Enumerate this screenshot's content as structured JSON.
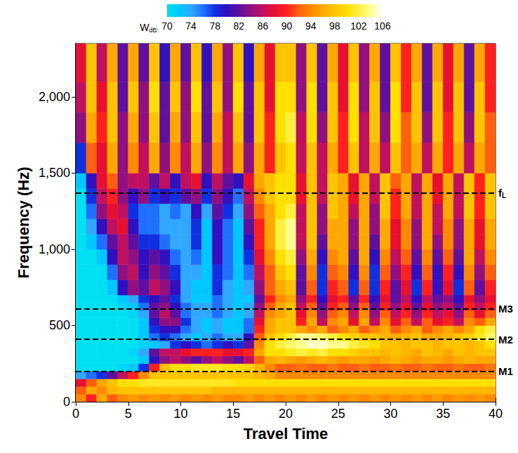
{
  "chart_data": {
    "type": "heatmap",
    "x_label": "Travel Time",
    "y_label": "Frequency (Hz)",
    "xlim": [
      0,
      40
    ],
    "xticks": [
      0,
      5,
      10,
      15,
      20,
      25,
      30,
      35,
      40
    ],
    "ylim": [
      0,
      2350
    ],
    "yticks": [
      0,
      500,
      1000,
      1500,
      2000
    ],
    "x_bins": [
      0,
      1,
      2,
      3,
      4,
      5,
      6,
      7,
      8,
      9,
      10,
      11,
      12,
      13,
      14,
      15,
      16,
      17,
      18,
      19,
      20,
      21,
      22,
      23,
      24,
      25,
      26,
      27,
      28,
      29,
      30,
      31,
      32,
      33,
      34,
      35,
      36,
      37,
      38,
      39,
      40
    ],
    "y_bins": [
      0,
      50,
      100,
      150,
      200,
      250,
      300,
      350,
      400,
      450,
      500,
      550,
      600,
      650,
      700,
      800,
      900,
      1000,
      1100,
      1200,
      1300,
      1400,
      1500,
      1700,
      1900,
      2100,
      2400
    ],
    "values": [
      [
        94,
        90,
        96,
        92,
        94,
        95,
        94,
        95,
        94,
        95,
        94,
        95,
        94,
        95,
        94,
        94,
        95,
        94,
        95,
        94,
        95,
        94,
        95,
        94,
        95,
        94,
        95,
        94,
        95,
        94,
        95,
        94,
        95,
        94,
        95,
        94,
        95,
        94,
        95,
        94
      ],
      [
        92,
        96,
        94,
        97,
        98,
        98,
        98,
        98,
        98,
        98,
        98,
        98,
        98,
        97,
        97,
        97,
        97,
        97,
        97,
        97,
        97,
        97,
        97,
        97,
        97,
        97,
        97,
        97,
        97,
        97,
        97,
        97,
        97,
        97,
        97,
        97,
        97,
        97,
        97,
        97
      ],
      [
        88,
        92,
        96,
        98,
        100,
        100,
        101,
        101,
        101,
        101,
        101,
        101,
        101,
        101,
        101,
        100,
        100,
        100,
        100,
        100,
        100,
        100,
        100,
        100,
        100,
        100,
        100,
        100,
        100,
        100,
        100,
        100,
        100,
        100,
        100,
        100,
        100,
        100,
        100,
        100
      ],
      [
        74,
        76,
        78,
        82,
        86,
        90,
        94,
        98,
        98,
        98,
        98,
        98,
        98,
        98,
        98,
        98,
        98,
        97,
        96,
        94,
        94,
        94,
        94,
        94,
        94,
        94,
        94,
        94,
        94,
        94,
        94,
        94,
        94,
        94,
        94,
        94,
        94,
        94,
        94,
        94
      ],
      [
        70,
        70,
        70,
        70,
        71,
        72,
        78,
        90,
        98,
        100,
        100,
        101,
        101,
        101,
        100,
        100,
        99,
        97,
        94,
        92,
        92,
        93,
        92,
        92,
        93,
        92,
        92,
        93,
        92,
        92,
        93,
        92,
        92,
        93,
        92,
        92,
        93,
        92,
        92,
        93
      ],
      [
        70,
        70,
        70,
        70,
        70,
        70,
        72,
        80,
        84,
        86,
        84,
        82,
        84,
        86,
        84,
        82,
        86,
        92,
        96,
        97,
        96,
        95,
        96,
        97,
        96,
        95,
        96,
        96,
        95,
        96,
        97,
        96,
        95,
        96,
        96,
        95,
        96,
        97,
        96,
        96
      ],
      [
        70,
        70,
        70,
        70,
        70,
        71,
        74,
        82,
        86,
        86,
        88,
        90,
        90,
        90,
        88,
        88,
        90,
        96,
        100,
        100,
        101,
        102,
        101,
        102,
        100,
        100,
        99,
        98,
        98,
        97,
        98,
        97,
        96,
        98,
        97,
        96,
        98,
        97,
        98,
        98
      ],
      [
        70,
        70,
        70,
        70,
        70,
        70,
        71,
        72,
        74,
        78,
        80,
        78,
        76,
        78,
        80,
        78,
        82,
        94,
        100,
        102,
        103,
        104,
        105,
        105,
        104,
        104,
        102,
        101,
        100,
        98,
        98,
        97,
        98,
        98,
        97,
        98,
        98,
        97,
        98,
        100
      ],
      [
        70,
        70,
        70,
        70,
        70,
        70,
        72,
        76,
        78,
        76,
        74,
        72,
        74,
        76,
        74,
        74,
        80,
        92,
        98,
        100,
        102,
        104,
        104,
        103,
        102,
        100,
        99,
        98,
        98,
        97,
        96,
        97,
        98,
        96,
        96,
        97,
        98,
        99,
        101,
        103
      ],
      [
        70,
        70,
        70,
        70,
        70,
        70,
        72,
        78,
        80,
        80,
        76,
        74,
        72,
        74,
        72,
        72,
        76,
        90,
        96,
        98,
        98,
        96,
        94,
        96,
        92,
        94,
        96,
        92,
        94,
        96,
        92,
        94,
        96,
        92,
        94,
        96,
        94,
        96,
        100,
        102
      ],
      [
        70,
        70,
        70,
        70,
        70,
        70,
        72,
        80,
        84,
        84,
        78,
        74,
        72,
        74,
        72,
        72,
        76,
        88,
        96,
        98,
        98,
        90,
        96,
        86,
        94,
        96,
        88,
        96,
        86,
        94,
        88,
        92,
        86,
        92,
        88,
        90,
        86,
        94,
        92,
        96
      ],
      [
        70,
        70,
        70,
        70,
        70,
        71,
        74,
        82,
        86,
        82,
        76,
        74,
        74,
        76,
        74,
        72,
        74,
        86,
        94,
        96,
        98,
        88,
        94,
        84,
        92,
        94,
        86,
        94,
        84,
        92,
        86,
        90,
        84,
        90,
        86,
        88,
        84,
        92,
        88,
        92
      ],
      [
        70,
        70,
        70,
        70,
        71,
        72,
        76,
        82,
        84,
        80,
        76,
        74,
        74,
        76,
        74,
        72,
        74,
        84,
        92,
        96,
        98,
        86,
        92,
        82,
        90,
        92,
        84,
        92,
        82,
        90,
        84,
        88,
        82,
        88,
        84,
        86,
        82,
        90,
        86,
        90
      ],
      [
        70,
        70,
        70,
        70,
        72,
        74,
        78,
        80,
        82,
        78,
        74,
        72,
        72,
        76,
        74,
        72,
        72,
        82,
        90,
        94,
        96,
        84,
        90,
        80,
        88,
        90,
        82,
        90,
        80,
        88,
        82,
        86,
        80,
        86,
        82,
        84,
        80,
        88,
        84,
        88
      ],
      [
        70,
        70,
        70,
        72,
        80,
        84,
        82,
        86,
        84,
        80,
        74,
        72,
        72,
        78,
        74,
        72,
        74,
        84,
        92,
        96,
        98,
        82,
        92,
        78,
        90,
        92,
        78,
        92,
        78,
        90,
        82,
        88,
        78,
        90,
        80,
        88,
        78,
        92,
        82,
        90
      ],
      [
        70,
        70,
        70,
        76,
        84,
        86,
        80,
        84,
        82,
        78,
        74,
        74,
        72,
        78,
        76,
        72,
        76,
        86,
        92,
        98,
        100,
        82,
        94,
        78,
        92,
        94,
        80,
        94,
        78,
        92,
        84,
        90,
        80,
        92,
        80,
        90,
        80,
        94,
        84,
        92
      ],
      [
        70,
        70,
        72,
        80,
        86,
        84,
        80,
        82,
        80,
        76,
        74,
        76,
        72,
        80,
        76,
        72,
        78,
        88,
        94,
        100,
        102,
        84,
        96,
        80,
        94,
        96,
        82,
        96,
        80,
        94,
        86,
        92,
        82,
        94,
        82,
        92,
        82,
        96,
        86,
        94
      ],
      [
        70,
        72,
        76,
        82,
        86,
        82,
        78,
        78,
        76,
        74,
        74,
        78,
        72,
        80,
        76,
        72,
        80,
        90,
        96,
        102,
        104,
        86,
        98,
        82,
        96,
        96,
        84,
        96,
        82,
        96,
        88,
        94,
        84,
        96,
        84,
        94,
        84,
        96,
        88,
        96
      ],
      [
        70,
        74,
        80,
        86,
        88,
        80,
        76,
        76,
        74,
        74,
        74,
        78,
        72,
        80,
        76,
        72,
        82,
        90,
        96,
        102,
        104,
        86,
        98,
        84,
        96,
        96,
        84,
        96,
        84,
        96,
        88,
        94,
        84,
        96,
        86,
        94,
        84,
        96,
        88,
        96
      ],
      [
        70,
        76,
        84,
        88,
        86,
        78,
        76,
        76,
        74,
        76,
        74,
        80,
        74,
        82,
        78,
        74,
        84,
        92,
        96,
        100,
        102,
        86,
        98,
        84,
        98,
        96,
        86,
        96,
        84,
        98,
        90,
        96,
        86,
        96,
        86,
        96,
        86,
        98,
        90,
        98
      ],
      [
        70,
        78,
        86,
        90,
        84,
        80,
        84,
        78,
        80,
        78,
        82,
        84,
        78,
        84,
        80,
        76,
        86,
        94,
        98,
        100,
        100,
        88,
        98,
        86,
        98,
        96,
        88,
        96,
        86,
        98,
        90,
        96,
        86,
        96,
        88,
        96,
        86,
        98,
        90,
        98
      ],
      [
        72,
        80,
        88,
        92,
        84,
        86,
        86,
        82,
        86,
        80,
        86,
        88,
        80,
        86,
        82,
        80,
        88,
        96,
        98,
        100,
        100,
        88,
        98,
        86,
        98,
        96,
        88,
        96,
        86,
        98,
        92,
        96,
        86,
        96,
        88,
        96,
        86,
        98,
        90,
        98
      ],
      [
        78,
        92,
        88,
        96,
        84,
        94,
        86,
        96,
        84,
        94,
        86,
        96,
        84,
        94,
        86,
        96,
        84,
        96,
        90,
        98,
        100,
        86,
        98,
        86,
        96,
        90,
        98,
        86,
        96,
        86,
        98,
        92,
        96,
        86,
        96,
        90,
        96,
        86,
        96,
        92
      ],
      [
        84,
        96,
        90,
        98,
        84,
        96,
        84,
        98,
        82,
        96,
        84,
        98,
        82,
        96,
        86,
        98,
        82,
        98,
        90,
        100,
        102,
        86,
        100,
        84,
        98,
        90,
        100,
        86,
        98,
        84,
        100,
        92,
        98,
        84,
        98,
        90,
        98,
        84,
        98,
        92
      ],
      [
        86,
        98,
        88,
        98,
        82,
        98,
        84,
        100,
        82,
        98,
        84,
        100,
        82,
        98,
        84,
        100,
        82,
        98,
        88,
        100,
        100,
        84,
        100,
        82,
        98,
        88,
        100,
        84,
        98,
        82,
        100,
        90,
        98,
        82,
        98,
        88,
        98,
        82,
        98,
        90
      ],
      [
        88,
        98,
        86,
        96,
        82,
        96,
        82,
        98,
        80,
        96,
        82,
        98,
        80,
        96,
        84,
        98,
        80,
        96,
        88,
        98,
        98,
        84,
        98,
        82,
        96,
        88,
        98,
        84,
        96,
        82,
        98,
        90,
        96,
        82,
        96,
        88,
        96,
        82,
        96,
        90
      ]
    ],
    "colorbar": {
      "label": "W",
      "label_subscript": "dB:",
      "range": [
        70,
        106
      ],
      "ticks": [
        70,
        74,
        78,
        82,
        86,
        90,
        94,
        98,
        102,
        106
      ]
    },
    "annotations": [
      {
        "y": 200,
        "label": "M1"
      },
      {
        "y": 410,
        "label": "M2"
      },
      {
        "y": 610,
        "label": "M3"
      },
      {
        "y": 1370,
        "label": "f",
        "label_subscript": "L"
      }
    ],
    "line_style": "dashed"
  }
}
